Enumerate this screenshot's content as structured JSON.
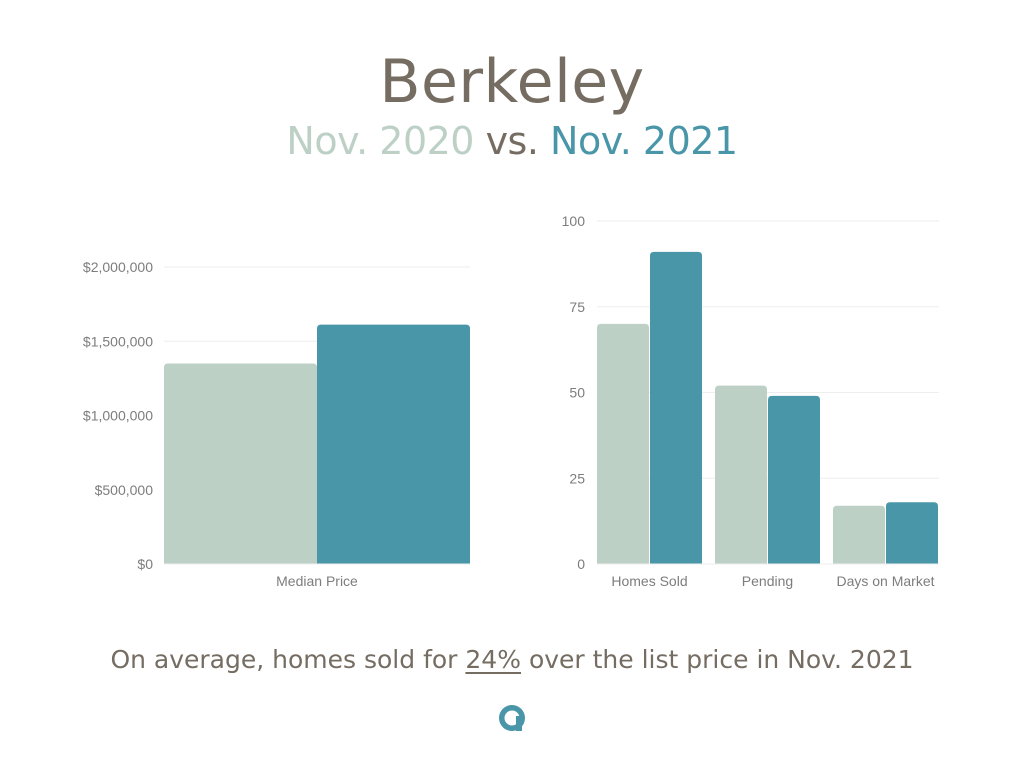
{
  "header": {
    "title": "Berkeley",
    "subtitle_prev": "Nov. 2020",
    "subtitle_vs": "vs.",
    "subtitle_cur": "Nov. 2021"
  },
  "footer": {
    "prefix": "On average, homes sold for",
    "highlight": "24%",
    "suffix": "over the list price in Nov. 2021"
  },
  "colors": {
    "prev": "#bdd0c5",
    "cur": "#4996a9",
    "text": "#756c62",
    "grid": "#eeeeee",
    "tick": "#7d7d7d"
  },
  "logo": {
    "icon": "a-logo-icon"
  },
  "chart_data": [
    {
      "type": "bar",
      "categories": [
        "Median Price"
      ],
      "series": [
        {
          "name": "Nov. 2020",
          "values": [
            1350000
          ]
        },
        {
          "name": "Nov. 2021",
          "values": [
            1612000
          ]
        }
      ],
      "yticks": [
        0,
        500000,
        1000000,
        1500000,
        2000000
      ],
      "ytick_labels": [
        "$0",
        "$500,000",
        "$1,000,000",
        "$1,500,000",
        "$2,000,000"
      ],
      "ylim": [
        0,
        2000000
      ],
      "grid": true
    },
    {
      "type": "bar",
      "categories": [
        "Homes Sold",
        "Pending",
        "Days on Market"
      ],
      "series": [
        {
          "name": "Nov. 2020",
          "values": [
            70,
            52,
            17
          ]
        },
        {
          "name": "Nov. 2021",
          "values": [
            91,
            49,
            18
          ]
        }
      ],
      "yticks": [
        0,
        25,
        50,
        75,
        100
      ],
      "ytick_labels": [
        "0",
        "25",
        "50",
        "75",
        "100"
      ],
      "ylim": [
        0,
        100
      ],
      "grid": true
    }
  ]
}
